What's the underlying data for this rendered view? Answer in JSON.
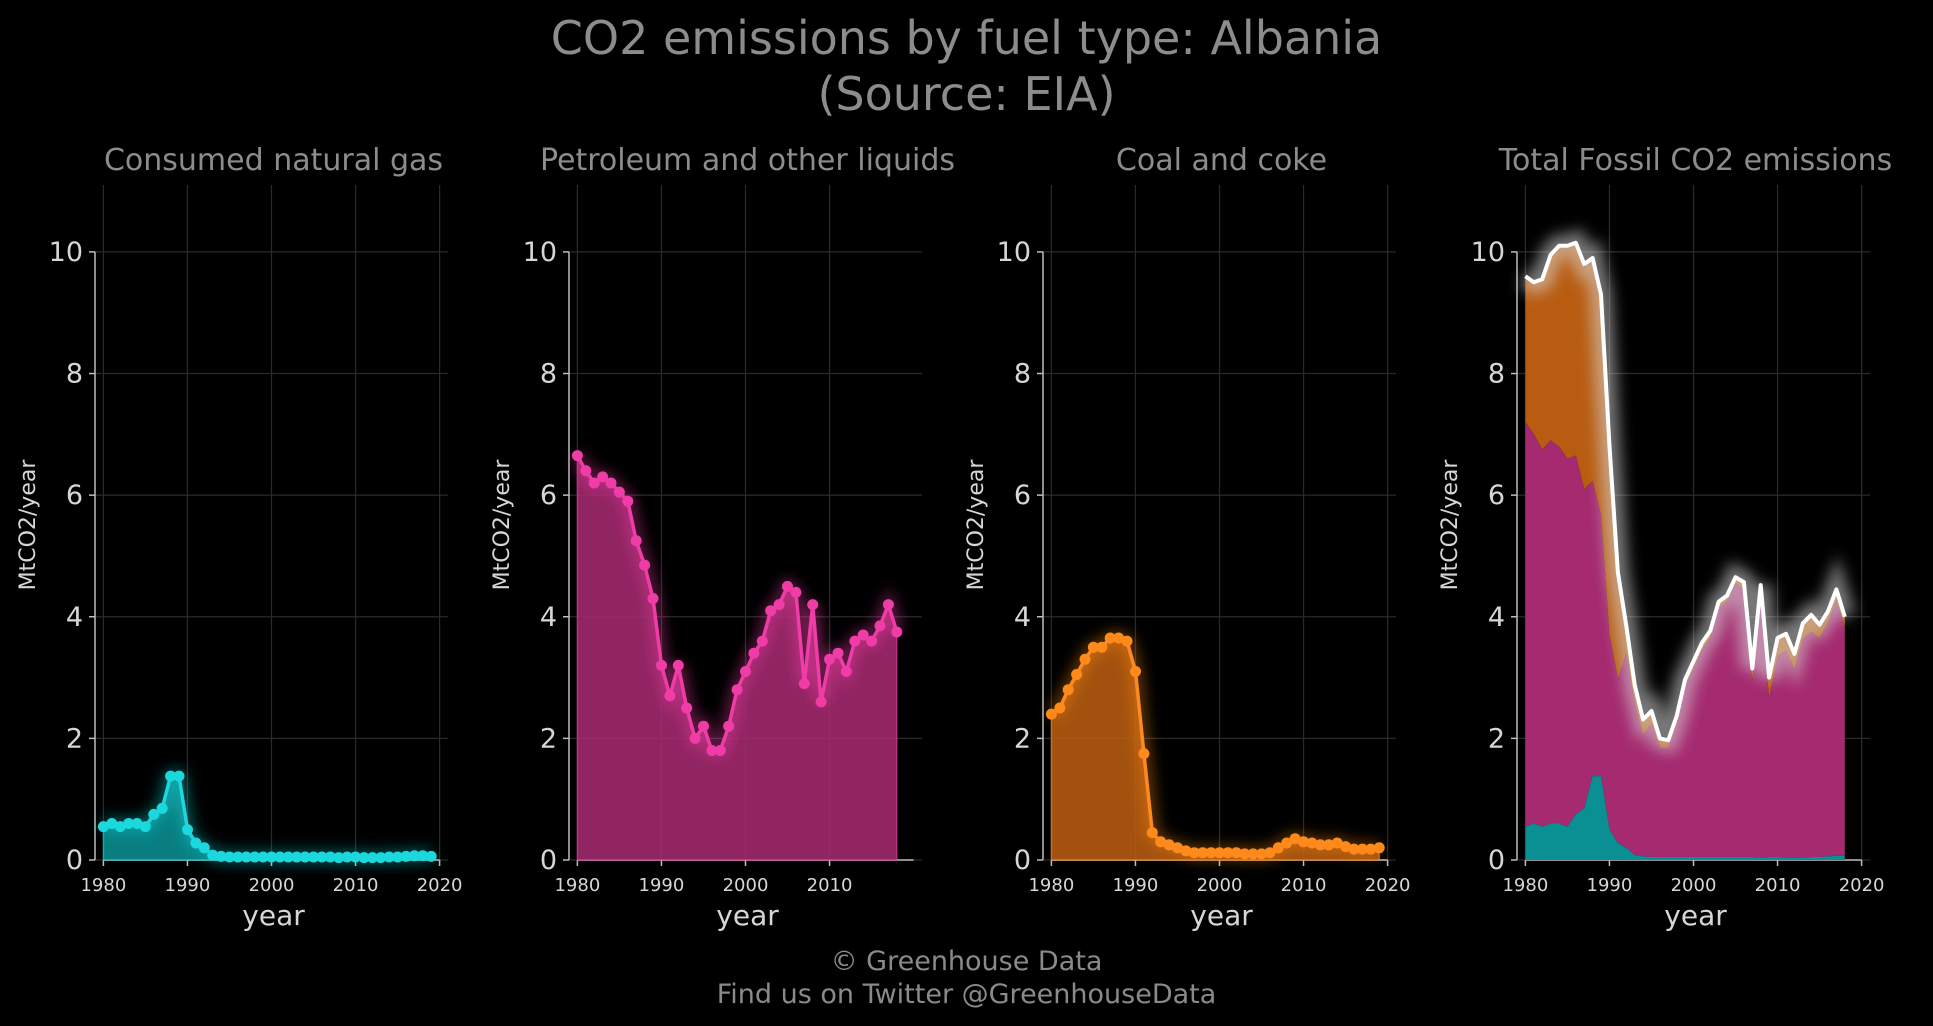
{
  "title": "CO2 emissions by fuel type: Albania",
  "subtitle": "(Source: EIA)",
  "footer": {
    "copyright": "© Greenhouse Data",
    "twitter": "Find us on Twitter @GreenhouseData"
  },
  "colors": {
    "background": "#000000",
    "gas": "#1ad8dc",
    "gas_fill": "#0a8f93",
    "petroleum": "#f03ca6",
    "petroleum_fill": "#a52a70",
    "coal": "#ff8a1c",
    "coal_fill": "#b85c11",
    "total": "#ffffff",
    "grid": "#2a2a2a",
    "text": "#8c8c8c"
  },
  "chart_data": [
    {
      "type": "area",
      "title": "Consumed natural gas",
      "xlabel": "year",
      "ylabel": "MtCO2/year",
      "xlim": [
        1979,
        2021
      ],
      "ylim": [
        0,
        11.1
      ],
      "xticks": [
        1980,
        1990,
        2000,
        2010,
        2020
      ],
      "yticks": [
        0,
        2,
        4,
        6,
        8,
        10
      ],
      "grid": true,
      "series": [
        {
          "x": [
            1980,
            1981,
            1982,
            1983,
            1984,
            1985,
            1986,
            1987,
            1988,
            1989,
            1990,
            1991,
            1992,
            1993,
            1994,
            1995,
            1996,
            1997,
            1998,
            1999,
            2000,
            2001,
            2002,
            2003,
            2004,
            2005,
            2006,
            2007,
            2008,
            2009,
            2010,
            2011,
            2012,
            2013,
            2014,
            2015,
            2016,
            2017,
            2018,
            2019
          ],
          "values": [
            0.55,
            0.6,
            0.55,
            0.6,
            0.6,
            0.55,
            0.75,
            0.85,
            1.38,
            1.38,
            0.5,
            0.28,
            0.2,
            0.08,
            0.06,
            0.05,
            0.05,
            0.05,
            0.05,
            0.05,
            0.05,
            0.05,
            0.05,
            0.05,
            0.05,
            0.05,
            0.05,
            0.05,
            0.04,
            0.05,
            0.05,
            0.04,
            0.04,
            0.04,
            0.05,
            0.05,
            0.06,
            0.07,
            0.07,
            0.06
          ]
        }
      ]
    },
    {
      "type": "area",
      "title": "Petroleum and other liquids",
      "xlabel": "year",
      "ylabel": "MtCO2/year",
      "xlim": [
        1979,
        2021
      ],
      "ylim": [
        0,
        11.1
      ],
      "xticks": [
        1980,
        1990,
        2000,
        2010
      ],
      "yticks": [
        0,
        2,
        4,
        6,
        8,
        10
      ],
      "grid": true,
      "series": [
        {
          "x": [
            1980,
            1981,
            1982,
            1983,
            1984,
            1985,
            1986,
            1987,
            1988,
            1989,
            1990,
            1991,
            1992,
            1993,
            1994,
            1995,
            1996,
            1997,
            1998,
            1999,
            2000,
            2001,
            2002,
            2003,
            2004,
            2005,
            2006,
            2007,
            2008,
            2009,
            2010,
            2011,
            2012,
            2013,
            2014,
            2015,
            2016,
            2017,
            2018
          ],
          "values": [
            6.65,
            6.4,
            6.2,
            6.3,
            6.2,
            6.05,
            5.9,
            5.25,
            4.85,
            4.3,
            3.2,
            2.7,
            3.2,
            2.5,
            2.0,
            2.2,
            1.8,
            1.8,
            2.2,
            2.8,
            3.1,
            3.4,
            3.6,
            4.1,
            4.2,
            4.5,
            4.4,
            2.9,
            4.2,
            2.6,
            3.3,
            3.4,
            3.1,
            3.6,
            3.7,
            3.6,
            3.85,
            4.2,
            3.75
          ]
        }
      ]
    },
    {
      "type": "area",
      "title": "Coal and coke",
      "xlabel": "year",
      "ylabel": "MtCO2/year",
      "xlim": [
        1979,
        2021
      ],
      "ylim": [
        0,
        11.1
      ],
      "xticks": [
        1980,
        1990,
        2000,
        2010,
        2020
      ],
      "yticks": [
        0,
        2,
        4,
        6,
        8,
        10
      ],
      "grid": true,
      "series": [
        {
          "x": [
            1980,
            1981,
            1982,
            1983,
            1984,
            1985,
            1986,
            1987,
            1988,
            1989,
            1990,
            1991,
            1992,
            1993,
            1994,
            1995,
            1996,
            1997,
            1998,
            1999,
            2000,
            2001,
            2002,
            2003,
            2004,
            2005,
            2006,
            2007,
            2008,
            2009,
            2010,
            2011,
            2012,
            2013,
            2014,
            2015,
            2016,
            2017,
            2018,
            2019
          ],
          "values": [
            2.4,
            2.5,
            2.8,
            3.05,
            3.3,
            3.5,
            3.5,
            3.65,
            3.65,
            3.6,
            3.1,
            1.75,
            0.45,
            0.3,
            0.25,
            0.2,
            0.15,
            0.12,
            0.12,
            0.12,
            0.12,
            0.12,
            0.12,
            0.1,
            0.1,
            0.1,
            0.12,
            0.2,
            0.28,
            0.35,
            0.3,
            0.28,
            0.25,
            0.25,
            0.28,
            0.22,
            0.18,
            0.18,
            0.18,
            0.2
          ]
        }
      ]
    },
    {
      "type": "area",
      "title": "Total Fossil CO2 emissions",
      "xlabel": "year",
      "ylabel": "MtCO2/year",
      "xlim": [
        1979,
        2021
      ],
      "ylim": [
        0,
        11.1
      ],
      "xticks": [
        1980,
        1990,
        2000,
        2010,
        2020
      ],
      "yticks": [
        0,
        2,
        4,
        6,
        8,
        10
      ],
      "grid": true,
      "stacked": true,
      "x": [
        1980,
        1981,
        1982,
        1983,
        1984,
        1985,
        1986,
        1987,
        1988,
        1989,
        1990,
        1991,
        1992,
        1993,
        1994,
        1995,
        1996,
        1997,
        1998,
        1999,
        2000,
        2001,
        2002,
        2003,
        2004,
        2005,
        2006,
        2007,
        2008,
        2009,
        2010,
        2011,
        2012,
        2013,
        2014,
        2015,
        2016,
        2017,
        2018
      ],
      "total": [
        9.6,
        9.5,
        9.55,
        9.95,
        10.1,
        10.1,
        10.15,
        9.8,
        9.9,
        9.3,
        6.8,
        4.73,
        3.85,
        2.88,
        2.31,
        2.45,
        2.0,
        1.97,
        2.37,
        2.97,
        3.27,
        3.57,
        3.77,
        4.25,
        4.35,
        4.65,
        4.57,
        3.15,
        4.52,
        3.0,
        3.65,
        3.72,
        3.39,
        3.89,
        4.03,
        3.87,
        4.09,
        4.45,
        4.0
      ]
    }
  ]
}
